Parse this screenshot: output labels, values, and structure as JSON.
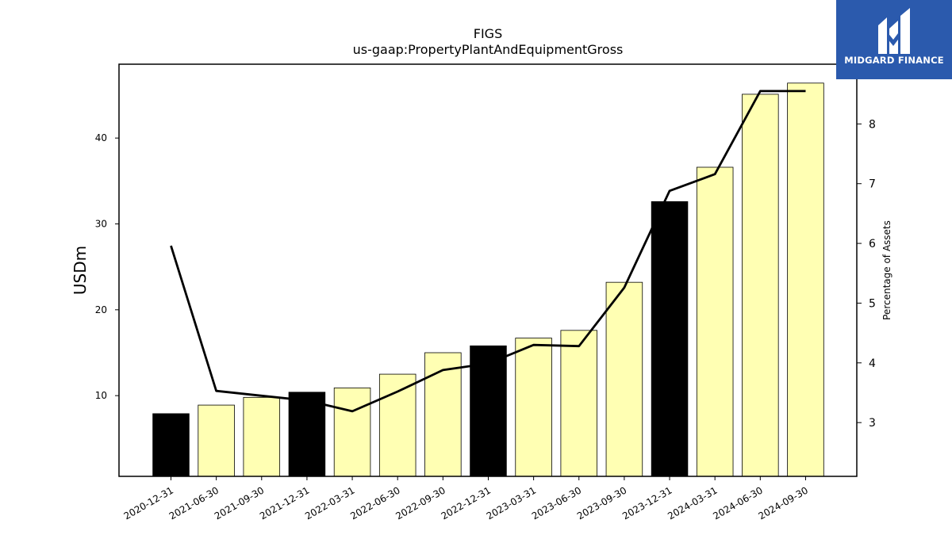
{
  "logo": {
    "text": "MIDGARD FINANCE",
    "icon": "midgard-m-icon"
  },
  "chart_data": {
    "type": "bar",
    "title": "FIGS",
    "subtitle": "us-gaap:PropertyPlantAndEquipmentGross",
    "ylabel": "USDm",
    "y2label": "Percentage of Assets",
    "ylim": [
      0.6,
      48.6
    ],
    "y2lim": [
      2.1,
      9.0
    ],
    "yticks": [
      10,
      20,
      30,
      40
    ],
    "y2ticks": [
      3,
      4,
      5,
      6,
      7,
      8
    ],
    "categories": [
      "2020-12-31",
      "2021-06-30",
      "2021-09-30",
      "2021-12-31",
      "2022-03-31",
      "2022-06-30",
      "2022-09-30",
      "2022-12-31",
      "2023-03-31",
      "2023-06-30",
      "2023-09-30",
      "2023-12-31",
      "2024-03-31",
      "2024-06-30",
      "2024-09-30"
    ],
    "series": [
      {
        "type": "bar",
        "values": [
          7.9,
          8.9,
          9.8,
          10.4,
          10.9,
          12.5,
          15.0,
          15.8,
          16.7,
          17.6,
          23.2,
          32.6,
          36.6,
          45.1,
          46.4
        ]
      },
      {
        "type": "line",
        "axis": "right",
        "values": [
          5.96,
          3.53,
          3.45,
          3.37,
          3.19,
          3.52,
          3.88,
          3.99,
          4.3,
          4.28,
          5.26,
          6.88,
          7.16,
          8.55,
          8.55
        ]
      }
    ],
    "bar_colors": [
      "#000000",
      "#ffffb3",
      "#ffffb3",
      "#000000",
      "#ffffb3",
      "#ffffb3",
      "#ffffb3",
      "#000000",
      "#ffffb3",
      "#ffffb3",
      "#ffffb3",
      "#000000",
      "#ffffb3",
      "#ffffb3",
      "#ffffb3"
    ],
    "line_color": "#000000",
    "grid": false
  }
}
